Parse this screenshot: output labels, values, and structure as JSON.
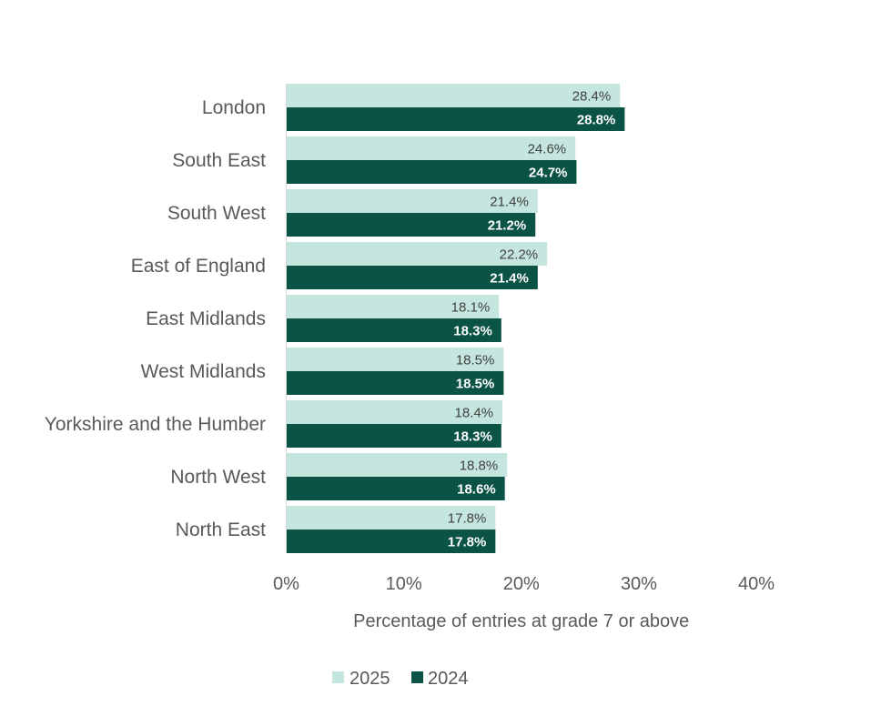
{
  "chart_data": {
    "type": "bar",
    "orientation": "horizontal",
    "categories": [
      "London",
      "South East",
      "South West",
      "East of England",
      "East Midlands",
      "West Midlands",
      "Yorkshire and the Humber",
      "North West",
      "North East"
    ],
    "series": [
      {
        "name": "2025",
        "color": "#c5e6de",
        "values": [
          28.4,
          24.6,
          21.4,
          22.2,
          18.1,
          18.5,
          18.4,
          18.8,
          17.8
        ],
        "labels": [
          "28.4%",
          "24.6%",
          "21.4%",
          "22.2%",
          "18.1%",
          "18.5%",
          "18.4%",
          "18.8%",
          "17.8%"
        ]
      },
      {
        "name": "2024",
        "color": "#0b5345",
        "values": [
          28.8,
          24.7,
          21.2,
          21.4,
          18.3,
          18.5,
          18.3,
          18.6,
          17.8
        ],
        "labels": [
          "28.8%",
          "24.7%",
          "21.2%",
          "21.4%",
          "18.3%",
          "18.5%",
          "18.3%",
          "18.6%",
          "17.8%"
        ]
      }
    ],
    "xlabel": "Percentage of entries at grade 7 or above",
    "xlim": [
      0,
      40
    ],
    "xticks": [
      0,
      10,
      20,
      30,
      40
    ],
    "xtick_labels": [
      "0%",
      "10%",
      "20%",
      "30%",
      "40%"
    ],
    "grid": false,
    "legend": {
      "placement": "bottom",
      "entries": [
        "2025",
        "2024"
      ]
    }
  }
}
